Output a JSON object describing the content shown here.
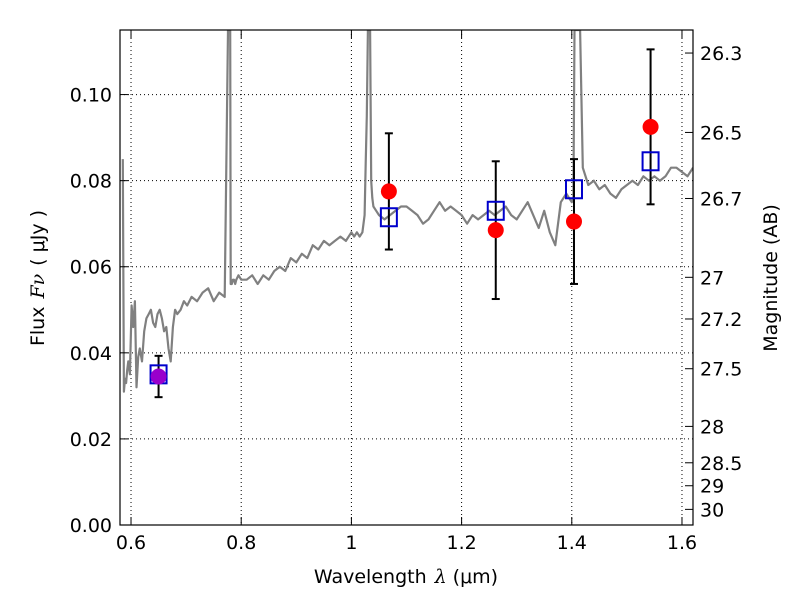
{
  "chart_data": {
    "type": "scatter",
    "xlabel_text": "Wavelength",
    "xlabel_symbol": "λ",
    "xlabel_units": "(μm)",
    "ylabel_text": "Flux",
    "ylabel_symbol": "Fν",
    "ylabel_units": "( μJy )",
    "y2label": "Magnitude (AB)",
    "xlim": [
      0.58,
      1.62
    ],
    "ylim": [
      0.0,
      0.115
    ],
    "grid": true,
    "x_ticks": [
      0.6,
      0.8,
      1.0,
      1.2,
      1.4,
      1.6
    ],
    "x_tick_labels": [
      "0.6",
      "0.8",
      "1",
      "1.2",
      "1.4",
      "1.6"
    ],
    "y_ticks": [
      0.0,
      0.02,
      0.04,
      0.06,
      0.08,
      0.1
    ],
    "y_tick_labels": [
      "0.00",
      "0.02",
      "0.04",
      "0.06",
      "0.08",
      "0.10"
    ],
    "y2_ticks_mag": [
      26.3,
      26.5,
      26.7,
      27,
      27.2,
      27.5,
      28,
      28.5,
      29,
      30
    ],
    "y2_tick_labels": [
      "26.3",
      "26.5",
      "26.7",
      "27",
      "27.2",
      "27.5",
      "28",
      "28.5",
      "29",
      "30"
    ],
    "series": [
      {
        "name": "observed_photometry",
        "marker": "circle",
        "color": "#ff0000",
        "points": [
          {
            "x": 0.65,
            "y": 0.0345,
            "err": 0.0048,
            "color": "#9900cc"
          },
          {
            "x": 1.068,
            "y": 0.0775,
            "err": 0.0135
          },
          {
            "x": 1.262,
            "y": 0.0685,
            "err": 0.016
          },
          {
            "x": 1.404,
            "y": 0.0705,
            "err": 0.0145
          },
          {
            "x": 1.543,
            "y": 0.0925,
            "err": 0.018
          }
        ]
      },
      {
        "name": "model_photometry",
        "marker": "square",
        "color": "#0000cc",
        "points": [
          {
            "x": 0.65,
            "y": 0.035
          },
          {
            "x": 1.068,
            "y": 0.0715
          },
          {
            "x": 1.262,
            "y": 0.073
          },
          {
            "x": 1.404,
            "y": 0.078
          },
          {
            "x": 1.543,
            "y": 0.0845
          }
        ]
      },
      {
        "name": "model_spectrum",
        "type": "line",
        "color": "#808080",
        "x": [
          0.585,
          0.587,
          0.589,
          0.591,
          0.593,
          0.595,
          0.598,
          0.601,
          0.604,
          0.607,
          0.61,
          0.613,
          0.616,
          0.62,
          0.624,
          0.628,
          0.632,
          0.636,
          0.64,
          0.644,
          0.648,
          0.652,
          0.656,
          0.66,
          0.664,
          0.668,
          0.672,
          0.676,
          0.68,
          0.684,
          0.69,
          0.696,
          0.702,
          0.71,
          0.72,
          0.73,
          0.74,
          0.75,
          0.76,
          0.77,
          0.776,
          0.78,
          0.781,
          0.783,
          0.785,
          0.787,
          0.789,
          0.791,
          0.795,
          0.8,
          0.81,
          0.82,
          0.83,
          0.84,
          0.85,
          0.86,
          0.87,
          0.88,
          0.89,
          0.9,
          0.91,
          0.92,
          0.93,
          0.94,
          0.95,
          0.96,
          0.97,
          0.98,
          0.99,
          1.0,
          1.005,
          1.01,
          1.015,
          1.02,
          1.024,
          1.026,
          1.028,
          1.03,
          1.032,
          1.034,
          1.036,
          1.038,
          1.04,
          1.045,
          1.05,
          1.06,
          1.07,
          1.08,
          1.09,
          1.1,
          1.11,
          1.12,
          1.13,
          1.14,
          1.15,
          1.16,
          1.17,
          1.18,
          1.19,
          1.2,
          1.21,
          1.22,
          1.23,
          1.24,
          1.25,
          1.26,
          1.27,
          1.28,
          1.29,
          1.3,
          1.31,
          1.32,
          1.33,
          1.34,
          1.35,
          1.36,
          1.37,
          1.38,
          1.39,
          1.395,
          1.4,
          1.403,
          1.405,
          1.41,
          1.415,
          1.42,
          1.43,
          1.44,
          1.45,
          1.46,
          1.47,
          1.48,
          1.49,
          1.5,
          1.51,
          1.52,
          1.53,
          1.54,
          1.55,
          1.56,
          1.57,
          1.58,
          1.59,
          1.6,
          1.61,
          1.62
        ],
        "y": [
          0.085,
          0.031,
          0.034,
          0.033,
          0.036,
          0.038,
          0.035,
          0.051,
          0.046,
          0.052,
          0.032,
          0.039,
          0.041,
          0.038,
          0.045,
          0.048,
          0.049,
          0.05,
          0.047,
          0.046,
          0.049,
          0.05,
          0.048,
          0.045,
          0.046,
          0.041,
          0.038,
          0.046,
          0.05,
          0.049,
          0.05,
          0.052,
          0.051,
          0.053,
          0.052,
          0.054,
          0.055,
          0.052,
          0.054,
          0.053,
          0.115,
          0.115,
          0.056,
          0.056,
          0.057,
          0.057,
          0.056,
          0.057,
          0.058,
          0.057,
          0.057,
          0.058,
          0.056,
          0.058,
          0.057,
          0.059,
          0.06,
          0.059,
          0.062,
          0.061,
          0.063,
          0.062,
          0.065,
          0.064,
          0.066,
          0.065,
          0.066,
          0.067,
          0.066,
          0.068,
          0.067,
          0.068,
          0.067,
          0.068,
          0.072,
          0.084,
          0.095,
          0.115,
          0.115,
          0.115,
          0.08,
          0.076,
          0.074,
          0.073,
          0.072,
          0.071,
          0.072,
          0.073,
          0.074,
          0.074,
          0.073,
          0.072,
          0.07,
          0.071,
          0.073,
          0.075,
          0.073,
          0.074,
          0.073,
          0.072,
          0.07,
          0.072,
          0.071,
          0.072,
          0.073,
          0.072,
          0.073,
          0.074,
          0.072,
          0.071,
          0.073,
          0.075,
          0.072,
          0.069,
          0.073,
          0.068,
          0.065,
          0.075,
          0.077,
          0.076,
          0.075,
          0.076,
          0.115,
          0.115,
          0.115,
          0.083,
          0.079,
          0.08,
          0.078,
          0.079,
          0.077,
          0.076,
          0.078,
          0.079,
          0.08,
          0.079,
          0.081,
          0.08,
          0.081,
          0.08,
          0.081,
          0.083,
          0.083,
          0.082,
          0.081,
          0.083
        ]
      }
    ]
  }
}
